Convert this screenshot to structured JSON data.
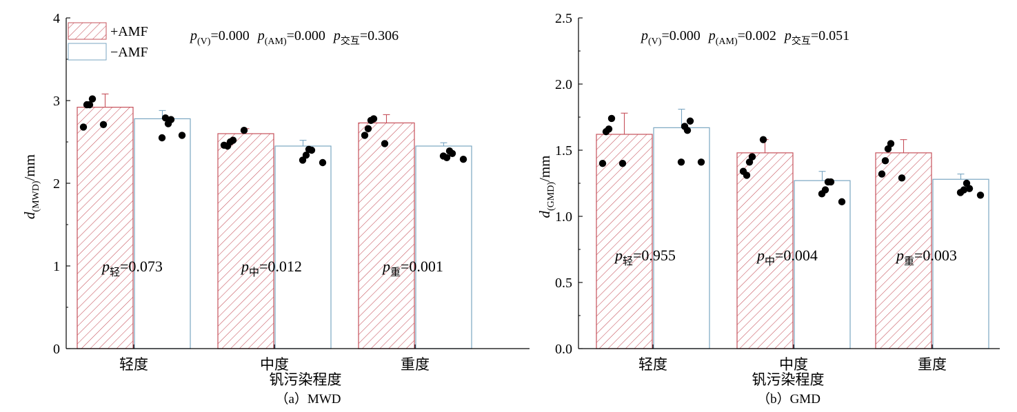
{
  "chart_data": [
    {
      "type": "bar",
      "caption": "（a）MWD",
      "xlabel": "钒污染程度",
      "ylabel": {
        "main": "d",
        "sub": "(MWD)",
        "unit": "/mm"
      },
      "ylim": [
        0,
        4
      ],
      "yticks": [
        "0",
        "1",
        "2",
        "3",
        "4"
      ],
      "categories": [
        "轻度",
        "中度",
        "重度"
      ],
      "series": [
        {
          "name": "+AMF",
          "values": [
            2.92,
            2.6,
            2.73
          ],
          "errors": [
            0.16,
            0.06,
            0.1
          ],
          "points": [
            [
              2.95,
              3.02,
              2.95,
              2.68,
              2.71
            ],
            [
              2.5,
              2.52,
              2.45,
              2.46,
              2.64
            ],
            [
              2.76,
              2.78,
              2.66,
              2.58,
              2.48
            ]
          ]
        },
        {
          "name": "−AMF",
          "values": [
            2.78,
            2.45,
            2.45
          ],
          "errors": [
            0.1,
            0.07,
            0.04
          ],
          "points": [
            [
              2.72,
              2.77,
              2.79,
              2.55,
              2.58
            ],
            [
              2.41,
              2.4,
              2.34,
              2.28,
              2.25
            ],
            [
              2.39,
              2.36,
              2.31,
              2.33,
              2.29
            ]
          ]
        }
      ],
      "stats": {
        "pv_label": "p",
        "pv_sub": "(V)",
        "pv_value": "=0.000",
        "pam_label": "p",
        "pam_sub": "(AM)",
        "pam_value": "=0.000",
        "pint_label": "p",
        "pint_sub": "交互",
        "pint_value": "=0.306",
        "group": [
          {
            "label": "p",
            "sub": "轻",
            "value": "=0.073"
          },
          {
            "label": "p",
            "sub": "中",
            "value": "=0.012"
          },
          {
            "label": "p",
            "sub": "重",
            "value": "=0.001"
          }
        ]
      },
      "legend": "top-left",
      "grid": false
    },
    {
      "type": "bar",
      "caption": "（b）GMD",
      "xlabel": "钒污染程度",
      "ylabel": {
        "main": "d",
        "sub": "(GMD)",
        "unit": "/mm"
      },
      "ylim": [
        0,
        2.5
      ],
      "yticks": [
        "0.0",
        "0.5",
        "1.0",
        "1.5",
        "2.0",
        "2.5"
      ],
      "categories": [
        "轻度",
        "中度",
        "重度"
      ],
      "series": [
        {
          "name": "+AMF",
          "values": [
            1.62,
            1.48,
            1.48
          ],
          "errors": [
            0.16,
            0.1,
            0.1
          ],
          "points": [
            [
              1.66,
              1.74,
              1.64,
              1.4,
              1.4
            ],
            [
              1.41,
              1.45,
              1.31,
              1.34,
              1.58
            ],
            [
              1.51,
              1.55,
              1.42,
              1.32,
              1.29
            ]
          ]
        },
        {
          "name": "−AMF",
          "values": [
            1.67,
            1.27,
            1.28
          ],
          "errors": [
            0.14,
            0.07,
            0.04
          ],
          "points": [
            [
              1.65,
              1.72,
              1.68,
              1.41,
              1.41
            ],
            [
              1.26,
              1.26,
              1.2,
              1.17,
              1.11
            ],
            [
              1.25,
              1.21,
              1.2,
              1.18,
              1.16
            ]
          ]
        }
      ],
      "stats": {
        "pv_label": "p",
        "pv_sub": "(V)",
        "pv_value": "=0.000",
        "pam_label": "p",
        "pam_sub": "(AM)",
        "pam_value": "=0.002",
        "pint_label": "p",
        "pint_sub": "交互",
        "pint_value": "=0.051",
        "group": [
          {
            "label": "p",
            "sub": "轻",
            "value": "=0.955"
          },
          {
            "label": "p",
            "sub": "中",
            "value": "=0.004"
          },
          {
            "label": "p",
            "sub": "重",
            "value": "=0.003"
          }
        ]
      },
      "legend": "",
      "grid": false
    }
  ],
  "colors": {
    "amf_plus": "#c6505a",
    "amf_minus": "#7aa6c2",
    "axis": "#000000",
    "points": "#000000"
  }
}
